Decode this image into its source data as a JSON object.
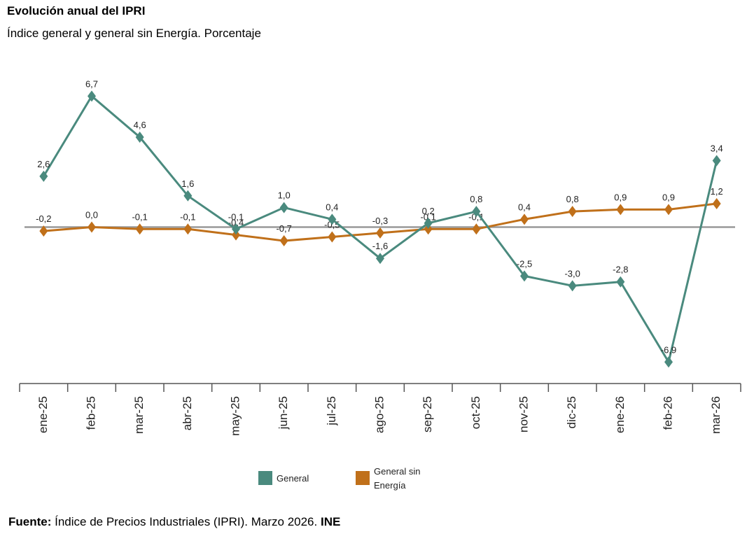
{
  "chart_data": {
    "type": "line",
    "title": "Evolución anual del IPRI",
    "subtitle": "Índice general y general sin Energía. Porcentaje",
    "categories": [
      "ene-25",
      "feb-25",
      "mar-25",
      "abr-25",
      "may-25",
      "jun-25",
      "jul-25",
      "ago-25",
      "sep-25",
      "oct-25",
      "nov-25",
      "dic-25",
      "ene-26",
      "feb-26",
      "mar-26"
    ],
    "series": [
      {
        "name": "General",
        "color": "#4a8a7e",
        "values": [
          2.6,
          6.7,
          4.6,
          1.6,
          -0.1,
          1.0,
          0.4,
          -1.6,
          0.2,
          0.8,
          -2.5,
          -3.0,
          -2.8,
          -6.9,
          3.4
        ],
        "value_labels": [
          "2,6",
          "6,7",
          "4,6",
          "1,6",
          "-0,1",
          "1,0",
          "0,4",
          "-1,6",
          "0,2",
          "0,8",
          "-2,5",
          "-3,0",
          "-2,8",
          "-6,9",
          "3,4"
        ]
      },
      {
        "name": "General sin Energía",
        "color": "#c0701a",
        "values": [
          -0.2,
          0.0,
          -0.1,
          -0.1,
          -0.4,
          -0.7,
          -0.5,
          -0.3,
          -0.1,
          -0.1,
          0.4,
          0.8,
          0.9,
          0.9,
          1.2
        ],
        "value_labels": [
          "-0,2",
          "0,0",
          "-0,1",
          "-0,1",
          "-0,4",
          "-0,7",
          "-0,5",
          "-0,3",
          "-0,1",
          "-0,1",
          "0,4",
          "0,8",
          "0,9",
          "0,9",
          "1,2"
        ]
      }
    ],
    "ylim": [
      -8,
      8
    ],
    "source": {
      "label": "Fuente:",
      "text": "Índice de Precios Industriales (IPRI).  Marzo 2026.",
      "org": "INE"
    }
  }
}
